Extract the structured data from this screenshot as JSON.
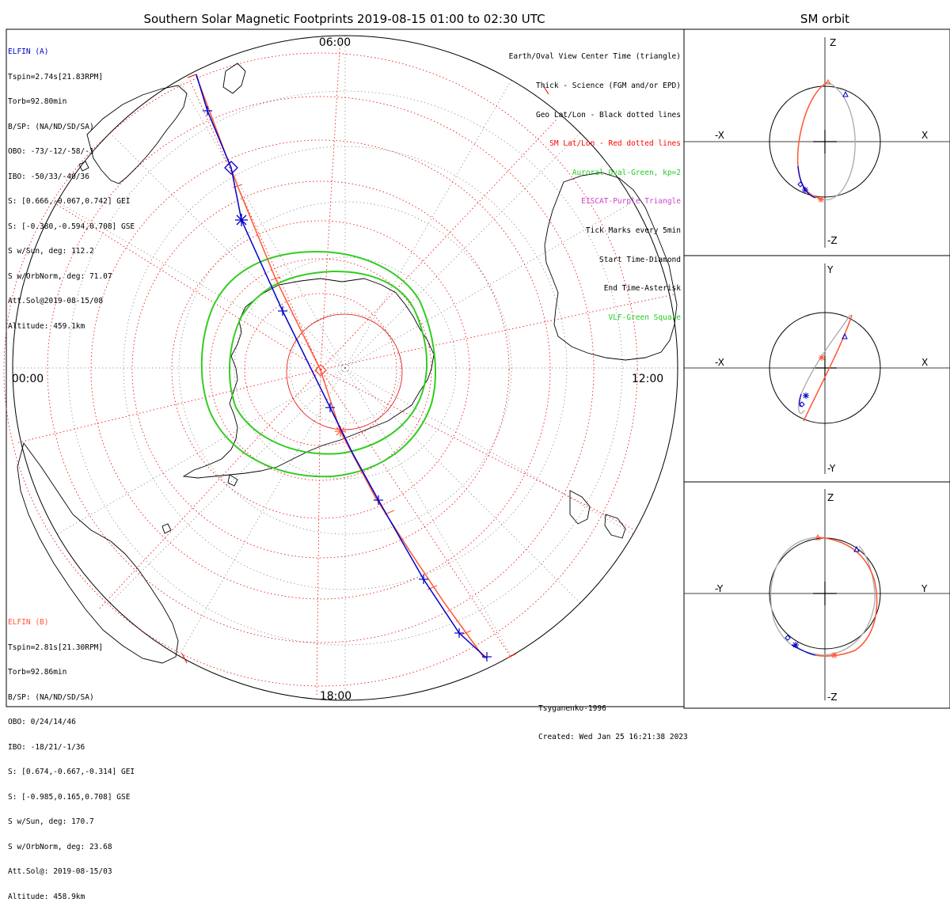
{
  "title": "Southern Solar Magnetic Footprints 2019-08-15 01:00 to 02:30 UTC",
  "orbit_title": "SM orbit",
  "hour_labels": {
    "top": "06:00",
    "left": "00:00",
    "right": "12:00",
    "bottom": "18:00"
  },
  "elfin_a": {
    "name": "ELFIN (A)",
    "color": "#0000cc",
    "lines": [
      "Tspin=2.74s[21.83RPM]",
      "Torb=92.80min",
      "B/SP: (NA/ND/SD/SA)",
      "OBO: -73/-12/-58/-1",
      "IBO: -50/33/-40/36",
      "S: [0.666,-0.067,0.742] GEI",
      "S: [-0.380,-0.594,0.708] GSE",
      "S w/Sun, deg: 112.2",
      "S w/OrbNorm, deg: 71.07",
      "Att.Sol@2019-08-15/08",
      "Altitude: 459.1km"
    ]
  },
  "elfin_b": {
    "name": "ELFIN (B)",
    "color": "#ff5533",
    "lines": [
      "Tspin=2.81s[21.30RPM]",
      "Torb=92.86min",
      "B/SP: (NA/ND/SD/SA)",
      "OBO: 0/24/14/46",
      "IBO: -18/21/-1/36",
      "S: [0.674,-0.667,-0.314] GEI",
      "S: [-0.985,0.165,0.708] GSE",
      "S w/Sun, deg: 170.7",
      "S w/OrbNorm, deg: 23.68",
      "Att.Sol@: 2019-08-15/03",
      "Altitude: 458.9km"
    ]
  },
  "legend": [
    {
      "text": "Earth/Oval View Center Time (triangle)",
      "color": "#000000"
    },
    {
      "text": "Thick - Science (FGM and/or EPD)",
      "color": "#000000"
    },
    {
      "text": "Geo Lat/Lon - Black dotted lines",
      "color": "#000000"
    },
    {
      "text": "SM Lat/Lon - Red dotted lines",
      "color": "#ff0000"
    },
    {
      "text": "Auroral Oval-Green, kp=2",
      "color": "#22cc22"
    },
    {
      "text": "EISCAT-Purple Triangle",
      "color": "#cc44cc"
    },
    {
      "text": "Tick Marks every 5min",
      "color": "#000000"
    },
    {
      "text": "Start Time-Diamond",
      "color": "#000000"
    },
    {
      "text": "End Time-Asterisk",
      "color": "#000000"
    },
    {
      "text": "VLF-Green Square",
      "color": "#22cc22"
    }
  ],
  "credit": [
    "Tsyganenko-1996",
    "Created: Wed Jan 25 16:21:38 2023"
  ],
  "panels": [
    {
      "top": "Z",
      "bottom": "-Z",
      "left": "-X",
      "right": "X"
    },
    {
      "top": "Y",
      "bottom": "-Y",
      "left": "-X",
      "right": "X"
    },
    {
      "top": "Z",
      "bottom": "-Z",
      "left": "-Y",
      "right": "Y"
    }
  ]
}
